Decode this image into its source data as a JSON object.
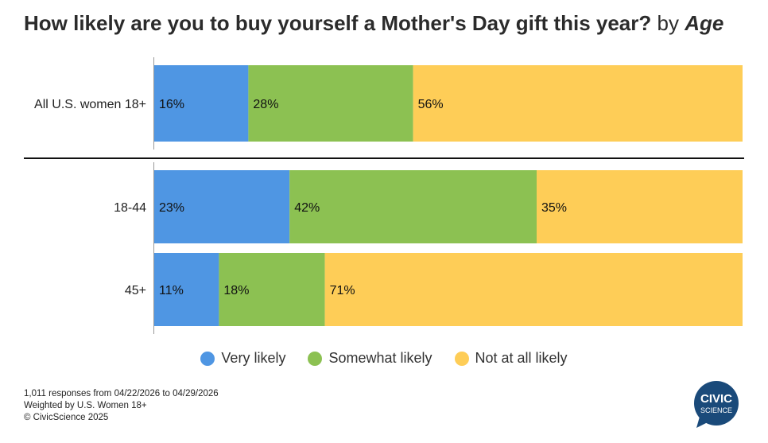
{
  "header": {
    "title_main": "How likely are you to buy yourself a Mother's Day gift this year?",
    "title_by": "by",
    "title_dimension": "Age"
  },
  "chart_data": {
    "type": "bar",
    "orientation": "horizontal-stacked",
    "categories": [
      "All U.S. women 18+",
      "18-44",
      "45+"
    ],
    "series": [
      {
        "name": "Very likely",
        "color": "#4f96e3",
        "values": [
          16,
          23,
          11
        ]
      },
      {
        "name": "Somewhat likely",
        "color": "#8cc152",
        "values": [
          28,
          42,
          18
        ]
      },
      {
        "name": "Not at all likely",
        "color": "#fecd57",
        "values": [
          56,
          35,
          71
        ]
      }
    ],
    "value_suffix": "%",
    "xlim": [
      0,
      100
    ],
    "legend_position": "bottom"
  },
  "footnotes": {
    "line1": "1,011 responses from 04/22/2026 to 04/29/2026",
    "line2": "Weighted by U.S. Women 18+",
    "line3": "© CivicScience 2025"
  },
  "logo": {
    "line1": "CIVIC",
    "line2": "SCIENCE",
    "color": "#1a4a7a"
  }
}
